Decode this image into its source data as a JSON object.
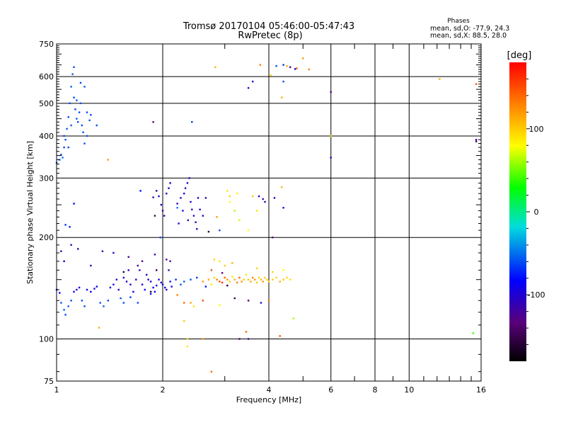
{
  "header": {
    "title_line1": "Tromsø 20170104 05:46:00-05:47:43",
    "title_line2": "RwPretec (8p)",
    "stats_title": "Phases",
    "stats_o": "mean, sd,O: -77.9, 24.3",
    "stats_x": "mean, sd,X:  88.5, 28.0"
  },
  "colorbar": {
    "label": "[deg]",
    "ticks": [
      {
        "value": 100,
        "label": "100"
      },
      {
        "value": 0,
        "label": "0"
      },
      {
        "value": -100,
        "label": "-100"
      }
    ],
    "range": [
      -180,
      180
    ]
  },
  "chart_data": {
    "type": "scatter",
    "title": "Tromsø 20170104 05:46:00-05:47:43",
    "subtitle": "RwPretec (8p)",
    "xlabel": "Frequency [MHz]",
    "ylabel": "Stationary phase Virtual Height [km]",
    "xscale": "log",
    "yscale": "log",
    "xlim": [
      1,
      16
    ],
    "ylim": [
      75,
      750
    ],
    "grid": true,
    "x_ticks": [
      {
        "value": 1,
        "label": "1"
      },
      {
        "value": 2,
        "label": "2"
      },
      {
        "value": 4,
        "label": "4"
      },
      {
        "value": 6,
        "label": "6"
      },
      {
        "value": 8,
        "label": "8"
      },
      {
        "value": 10,
        "label": "10"
      },
      {
        "value": 16,
        "label": "16"
      }
    ],
    "y_ticks": [
      {
        "value": 75,
        "label": "75"
      },
      {
        "value": 100,
        "label": "100"
      },
      {
        "value": 200,
        "label": "200"
      },
      {
        "value": 300,
        "label": "300"
      },
      {
        "value": 400,
        "label": "400"
      },
      {
        "value": 500,
        "label": "500"
      },
      {
        "value": 600,
        "label": "600"
      },
      {
        "value": 750,
        "label": "750"
      }
    ],
    "color_dimension": "phase [deg]",
    "points": [
      [
        1.0,
        333,
        -60
      ],
      [
        1.02,
        340,
        -55
      ],
      [
        1.03,
        352,
        -60
      ],
      [
        1.04,
        345,
        -50
      ],
      [
        1.05,
        370,
        -62
      ],
      [
        1.06,
        390,
        -60
      ],
      [
        1.07,
        420,
        -58
      ],
      [
        1.08,
        455,
        -62
      ],
      [
        1.09,
        500,
        -60
      ],
      [
        1.1,
        560,
        -55
      ],
      [
        1.11,
        610,
        -58
      ],
      [
        1.12,
        640,
        -60
      ],
      [
        1.12,
        520,
        -62
      ],
      [
        1.13,
        480,
        -60
      ],
      [
        1.14,
        450,
        -58
      ],
      [
        1.15,
        440,
        -62
      ],
      [
        1.16,
        470,
        -60
      ],
      [
        1.17,
        500,
        -56
      ],
      [
        1.18,
        430,
        -60
      ],
      [
        1.19,
        410,
        -58
      ],
      [
        1.2,
        380,
        -62
      ],
      [
        1.22,
        470,
        -60
      ],
      [
        1.24,
        445,
        -58
      ],
      [
        1.05,
        400,
        -60
      ],
      [
        1.08,
        370,
        -64
      ],
      [
        1.1,
        430,
        -56
      ],
      [
        1.14,
        510,
        -60
      ],
      [
        1.17,
        575,
        -62
      ],
      [
        1.2,
        560,
        -55
      ],
      [
        1.22,
        400,
        -60
      ],
      [
        1.25,
        462,
        -62
      ],
      [
        1.3,
        430,
        -58
      ],
      [
        1.12,
        252,
        -80
      ],
      [
        1.06,
        218,
        -70
      ],
      [
        1.09,
        215,
        -75
      ],
      [
        1.4,
        340,
        120
      ],
      [
        1.03,
        182,
        -110
      ],
      [
        1.1,
        190,
        -105
      ],
      [
        1.0,
        140,
        -80
      ],
      [
        1.02,
        137,
        -85
      ],
      [
        1.03,
        128,
        -60
      ],
      [
        1.05,
        122,
        -55
      ],
      [
        1.06,
        118,
        -62
      ],
      [
        1.08,
        125,
        -58
      ],
      [
        1.1,
        130,
        -60
      ],
      [
        1.12,
        138,
        -90
      ],
      [
        1.14,
        140,
        -95
      ],
      [
        1.16,
        142,
        -88
      ],
      [
        1.18,
        130,
        -60
      ],
      [
        1.2,
        125,
        -62
      ],
      [
        1.22,
        140,
        -92
      ],
      [
        1.25,
        138,
        -90
      ],
      [
        1.28,
        141,
        -95
      ],
      [
        1.3,
        143,
        -88
      ],
      [
        1.33,
        128,
        -60
      ],
      [
        1.36,
        125,
        -55
      ],
      [
        1.4,
        130,
        -62
      ],
      [
        1.42,
        142,
        -95
      ],
      [
        1.45,
        145,
        -100
      ],
      [
        1.48,
        150,
        -105
      ],
      [
        1.5,
        140,
        -90
      ],
      [
        1.52,
        132,
        -60
      ],
      [
        1.55,
        152,
        -110
      ],
      [
        1.58,
        148,
        -100
      ],
      [
        1.6,
        160,
        -115
      ],
      [
        1.62,
        145,
        -95
      ],
      [
        1.65,
        138,
        -90
      ],
      [
        1.68,
        150,
        -105
      ],
      [
        1.7,
        165,
        -120
      ],
      [
        1.72,
        160,
        -115
      ],
      [
        1.75,
        145,
        -95
      ],
      [
        1.78,
        140,
        -90
      ],
      [
        1.8,
        155,
        -110
      ],
      [
        1.82,
        150,
        -105
      ],
      [
        1.85,
        148,
        -100
      ],
      [
        1.88,
        142,
        -92
      ],
      [
        1.9,
        138,
        -88
      ],
      [
        1.92,
        144,
        -95
      ],
      [
        1.95,
        150,
        -100
      ],
      [
        1.98,
        147,
        -98
      ],
      [
        2.0,
        145,
        -95
      ],
      [
        2.03,
        142,
        -92
      ],
      [
        2.05,
        140,
        -90
      ],
      [
        2.08,
        160,
        -115
      ],
      [
        2.1,
        170,
        -120
      ],
      [
        2.12,
        143,
        -95
      ],
      [
        1.15,
        185,
        -115
      ],
      [
        1.25,
        165,
        -112
      ],
      [
        1.45,
        180,
        -108
      ],
      [
        1.6,
        175,
        -118
      ],
      [
        1.75,
        170,
        -122
      ],
      [
        1.9,
        178,
        -120
      ],
      [
        2.05,
        172,
        -118
      ],
      [
        1.55,
        128,
        -60
      ],
      [
        1.62,
        133,
        -65
      ],
      [
        1.7,
        128,
        -60
      ],
      [
        1.85,
        136,
        -75
      ],
      [
        1.05,
        170,
        -95
      ],
      [
        1.32,
        108,
        110
      ],
      [
        1.35,
        182,
        -120
      ],
      [
        1.85,
        138,
        -160
      ],
      [
        1.92,
        160,
        -150
      ],
      [
        1.55,
        158,
        -165
      ],
      [
        1.88,
        263,
        -110
      ],
      [
        1.92,
        275,
        -105
      ],
      [
        1.95,
        265,
        -108
      ],
      [
        1.98,
        250,
        -112
      ],
      [
        2.0,
        240,
        -115
      ],
      [
        2.02,
        232,
        -110
      ],
      [
        2.05,
        270,
        -105
      ],
      [
        2.08,
        280,
        -102
      ],
      [
        2.1,
        290,
        -100
      ],
      [
        1.9,
        232,
        -150
      ],
      [
        2.2,
        252,
        -110
      ],
      [
        2.25,
        262,
        -106
      ],
      [
        2.3,
        270,
        -104
      ],
      [
        2.32,
        280,
        -102
      ],
      [
        2.35,
        290,
        -100
      ],
      [
        2.38,
        300,
        -98
      ],
      [
        2.4,
        255,
        -110
      ],
      [
        2.42,
        242,
        -115
      ],
      [
        2.45,
        232,
        -112
      ],
      [
        2.48,
        222,
        -108
      ],
      [
        2.5,
        212,
        -104
      ],
      [
        2.52,
        262,
        -100
      ],
      [
        2.55,
        242,
        -102
      ],
      [
        2.22,
        220,
        -100
      ],
      [
        2.28,
        240,
        -100
      ],
      [
        2.36,
        225,
        -118
      ],
      [
        2.6,
        232,
        -110
      ],
      [
        2.65,
        262,
        -112
      ],
      [
        2.7,
        208,
        -160
      ],
      [
        1.88,
        440,
        -130
      ],
      [
        2.42,
        440,
        -65
      ],
      [
        1.97,
        200,
        -60
      ],
      [
        1.73,
        275,
        -80
      ],
      [
        2.1,
        148,
        -80
      ],
      [
        2.18,
        150,
        -70
      ],
      [
        2.25,
        145,
        -60
      ],
      [
        2.3,
        148,
        -55
      ],
      [
        2.4,
        150,
        -60
      ],
      [
        2.5,
        152,
        -65
      ],
      [
        2.6,
        148,
        120
      ],
      [
        2.7,
        150,
        110
      ],
      [
        2.75,
        145,
        90
      ],
      [
        2.8,
        152,
        100
      ],
      [
        2.85,
        150,
        130
      ],
      [
        2.9,
        148,
        150
      ],
      [
        2.95,
        147,
        160
      ],
      [
        3.0,
        152,
        140
      ],
      [
        3.05,
        150,
        120
      ],
      [
        3.1,
        148,
        100
      ],
      [
        3.15,
        153,
        90
      ],
      [
        3.2,
        150,
        110
      ],
      [
        3.25,
        147,
        130
      ],
      [
        3.3,
        152,
        140
      ],
      [
        3.35,
        148,
        120
      ],
      [
        3.4,
        150,
        100
      ],
      [
        3.45,
        155,
        90
      ],
      [
        3.5,
        150,
        100
      ],
      [
        3.55,
        148,
        110
      ],
      [
        3.6,
        152,
        130
      ],
      [
        3.65,
        150,
        120
      ],
      [
        3.7,
        147,
        100
      ],
      [
        3.75,
        152,
        95
      ],
      [
        3.8,
        150,
        110
      ],
      [
        3.85,
        148,
        120
      ],
      [
        3.9,
        152,
        100
      ],
      [
        3.95,
        150,
        95
      ],
      [
        4.0,
        148,
        90
      ],
      [
        4.1,
        150,
        100
      ],
      [
        4.2,
        152,
        95
      ],
      [
        4.3,
        148,
        110
      ],
      [
        4.4,
        150,
        100
      ],
      [
        4.5,
        152,
        95
      ],
      [
        4.6,
        150,
        90
      ],
      [
        2.8,
        172,
        95
      ],
      [
        2.9,
        170,
        90
      ],
      [
        3.0,
        165,
        100
      ],
      [
        3.15,
        168,
        110
      ],
      [
        2.75,
        160,
        150
      ],
      [
        3.7,
        162,
        95
      ],
      [
        4.4,
        160,
        80
      ],
      [
        4.1,
        158,
        100
      ],
      [
        2.95,
        157,
        -130
      ],
      [
        3.05,
        144,
        -160
      ],
      [
        2.65,
        143,
        -80
      ],
      [
        3.5,
        130,
        -140
      ],
      [
        4.0,
        130,
        130
      ],
      [
        3.2,
        132,
        -150
      ],
      [
        3.8,
        128,
        -100
      ],
      [
        2.3,
        128,
        140
      ],
      [
        2.4,
        128,
        120
      ],
      [
        2.2,
        135,
        130
      ],
      [
        2.45,
        125,
        90
      ],
      [
        2.6,
        130,
        150
      ],
      [
        2.9,
        126,
        80
      ],
      [
        4.7,
        115,
        60
      ],
      [
        2.3,
        113,
        100
      ],
      [
        2.6,
        100,
        120
      ],
      [
        2.35,
        100,
        95
      ],
      [
        2.35,
        95,
        90
      ],
      [
        3.3,
        100,
        -140
      ],
      [
        3.45,
        105,
        140
      ],
      [
        3.5,
        100,
        -120
      ],
      [
        4.3,
        102,
        150
      ],
      [
        2.75,
        80,
        140
      ],
      [
        15.2,
        104,
        40
      ],
      [
        3.1,
        255,
        80
      ],
      [
        3.2,
        240,
        60
      ],
      [
        3.3,
        225,
        70
      ],
      [
        3.25,
        270,
        85
      ],
      [
        3.1,
        265,
        95
      ],
      [
        3.05,
        275,
        90
      ],
      [
        3.6,
        265,
        100
      ],
      [
        3.7,
        240,
        90
      ],
      [
        3.85,
        260,
        -120
      ],
      [
        3.75,
        265,
        -110
      ],
      [
        3.9,
        255,
        -100
      ],
      [
        4.15,
        262,
        -105
      ],
      [
        4.4,
        245,
        -80
      ],
      [
        4.1,
        200,
        -130
      ],
      [
        3.5,
        210,
        80
      ],
      [
        2.85,
        230,
        120
      ],
      [
        2.2,
        245,
        -50
      ],
      [
        2.9,
        210,
        -60
      ],
      [
        4.35,
        282,
        110
      ],
      [
        2.82,
        640,
        110
      ],
      [
        3.5,
        555,
        -120
      ],
      [
        3.6,
        580,
        -100
      ],
      [
        3.78,
        650,
        130
      ],
      [
        4.05,
        605,
        100
      ],
      [
        4.2,
        645,
        -60
      ],
      [
        4.4,
        650,
        -70
      ],
      [
        4.5,
        645,
        110
      ],
      [
        4.6,
        640,
        -130
      ],
      [
        4.75,
        632,
        -90
      ],
      [
        4.8,
        635,
        140
      ],
      [
        5.0,
        680,
        120
      ],
      [
        5.2,
        630,
        130
      ],
      [
        4.4,
        580,
        -60
      ],
      [
        4.35,
        520,
        110
      ],
      [
        6.0,
        540,
        -130
      ],
      [
        6.0,
        400,
        100
      ],
      [
        6.0,
        345,
        -100
      ],
      [
        12.2,
        590,
        110
      ],
      [
        15.5,
        570,
        150
      ],
      [
        15.5,
        390,
        -120
      ],
      [
        15.5,
        385,
        -140
      ]
    ]
  }
}
